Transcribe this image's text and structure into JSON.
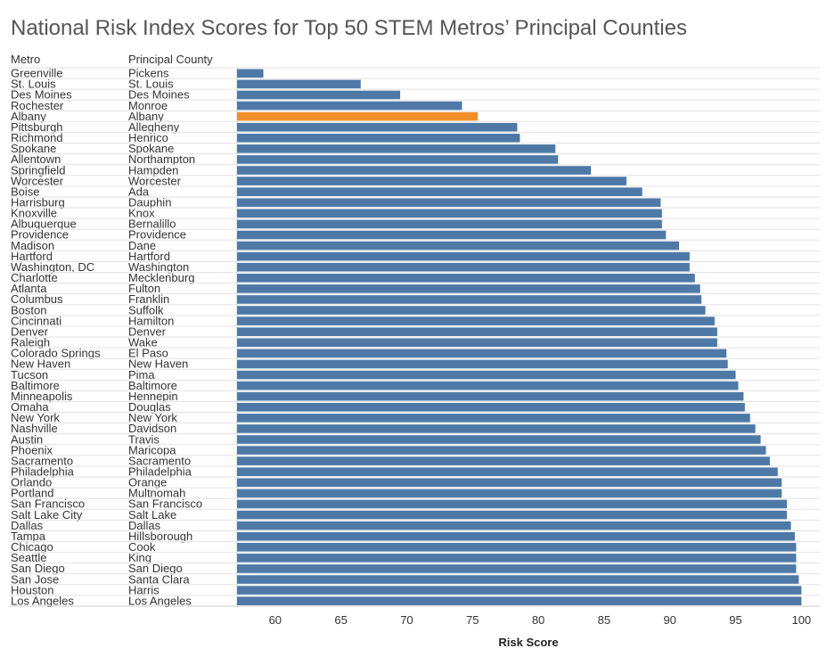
{
  "chart_data": {
    "type": "bar",
    "orientation": "horizontal",
    "title": "National Risk Index Scores for Top 50 STEM Metros’ Principal Counties",
    "column_headers": [
      "Metro",
      "Principal County"
    ],
    "xlabel": "Risk Score",
    "ylabel": "",
    "xlim": [
      57.1,
      101.4
    ],
    "xticks": [
      60,
      65,
      70,
      75,
      80,
      85,
      90,
      95,
      100
    ],
    "grid": "horizontal row dividers",
    "default_color": "#4e79a7",
    "highlight_color": "#f28e2b",
    "highlight": "Albany",
    "rows": [
      {
        "metro": "Greenville",
        "county": "Pickens",
        "value": 59.1
      },
      {
        "metro": "St. Louis",
        "county": "St. Louis",
        "value": 66.5
      },
      {
        "metro": "Des Moines",
        "county": "Des Moines",
        "value": 69.5
      },
      {
        "metro": "Rochester",
        "county": "Monroe",
        "value": 74.2
      },
      {
        "metro": "Albany",
        "county": "Albany",
        "value": 75.4
      },
      {
        "metro": "Pittsburgh",
        "county": "Allegheny",
        "value": 78.4
      },
      {
        "metro": "Richmond",
        "county": "Henrico",
        "value": 78.6
      },
      {
        "metro": "Spokane",
        "county": "Spokane",
        "value": 81.3
      },
      {
        "metro": "Allentown",
        "county": "Northampton",
        "value": 81.5
      },
      {
        "metro": "Springfield",
        "county": "Hampden",
        "value": 84.0
      },
      {
        "metro": "Worcester",
        "county": "Worcester",
        "value": 86.7
      },
      {
        "metro": "Boise",
        "county": "Ada",
        "value": 87.9
      },
      {
        "metro": "Harrisburg",
        "county": "Dauphin",
        "value": 89.3
      },
      {
        "metro": "Knoxville",
        "county": "Knox",
        "value": 89.4
      },
      {
        "metro": "Albuquerque",
        "county": "Bernalillo",
        "value": 89.4
      },
      {
        "metro": "Providence",
        "county": "Providence",
        "value": 89.7
      },
      {
        "metro": "Madison",
        "county": "Dane",
        "value": 90.7
      },
      {
        "metro": "Hartford",
        "county": "Hartford",
        "value": 91.5
      },
      {
        "metro": "Washington, DC",
        "county": "Washington",
        "value": 91.5
      },
      {
        "metro": "Charlotte",
        "county": "Mecklenburg",
        "value": 91.9
      },
      {
        "metro": "Atlanta",
        "county": "Fulton",
        "value": 92.3
      },
      {
        "metro": "Columbus",
        "county": "Franklin",
        "value": 92.4
      },
      {
        "metro": "Boston",
        "county": "Suffolk",
        "value": 92.7
      },
      {
        "metro": "Cincinnati",
        "county": "Hamilton",
        "value": 93.4
      },
      {
        "metro": "Denver",
        "county": "Denver",
        "value": 93.6
      },
      {
        "metro": "Raleigh",
        "county": "Wake",
        "value": 93.6
      },
      {
        "metro": "Colorado Springs",
        "county": "El Paso",
        "value": 94.3
      },
      {
        "metro": "New Haven",
        "county": "New Haven",
        "value": 94.4
      },
      {
        "metro": "Tucson",
        "county": "Pima",
        "value": 95.0
      },
      {
        "metro": "Baltimore",
        "county": "Baltimore",
        "value": 95.2
      },
      {
        "metro": "Minneapolis",
        "county": "Hennepin",
        "value": 95.6
      },
      {
        "metro": "Omaha",
        "county": "Douglas",
        "value": 95.7
      },
      {
        "metro": "New York",
        "county": "New York",
        "value": 96.1
      },
      {
        "metro": "Nashville",
        "county": "Davidson",
        "value": 96.5
      },
      {
        "metro": "Austin",
        "county": "Travis",
        "value": 96.9
      },
      {
        "metro": "Phoenix",
        "county": "Maricopa",
        "value": 97.3
      },
      {
        "metro": "Sacramento",
        "county": "Sacramento",
        "value": 97.6
      },
      {
        "metro": "Philadelphia",
        "county": "Philadelphia",
        "value": 98.2
      },
      {
        "metro": "Orlando",
        "county": "Orange",
        "value": 98.5
      },
      {
        "metro": "Portland",
        "county": "Multnomah",
        "value": 98.5
      },
      {
        "metro": "San Francisco",
        "county": "San Francisco",
        "value": 98.9
      },
      {
        "metro": "Salt Lake City",
        "county": "Salt Lake",
        "value": 98.9
      },
      {
        "metro": "Dallas",
        "county": "Dallas",
        "value": 99.2
      },
      {
        "metro": "Tampa",
        "county": "Hillsborough",
        "value": 99.5
      },
      {
        "metro": "Chicago",
        "county": "Cook",
        "value": 99.6
      },
      {
        "metro": "Seattle",
        "county": "King",
        "value": 99.6
      },
      {
        "metro": "San Diego",
        "county": "San Diego",
        "value": 99.6
      },
      {
        "metro": "San Jose",
        "county": "Santa Clara",
        "value": 99.8
      },
      {
        "metro": "Houston",
        "county": "Harris",
        "value": 100.0
      },
      {
        "metro": "Los Angeles",
        "county": "Los Angeles",
        "value": 100.0
      }
    ]
  }
}
